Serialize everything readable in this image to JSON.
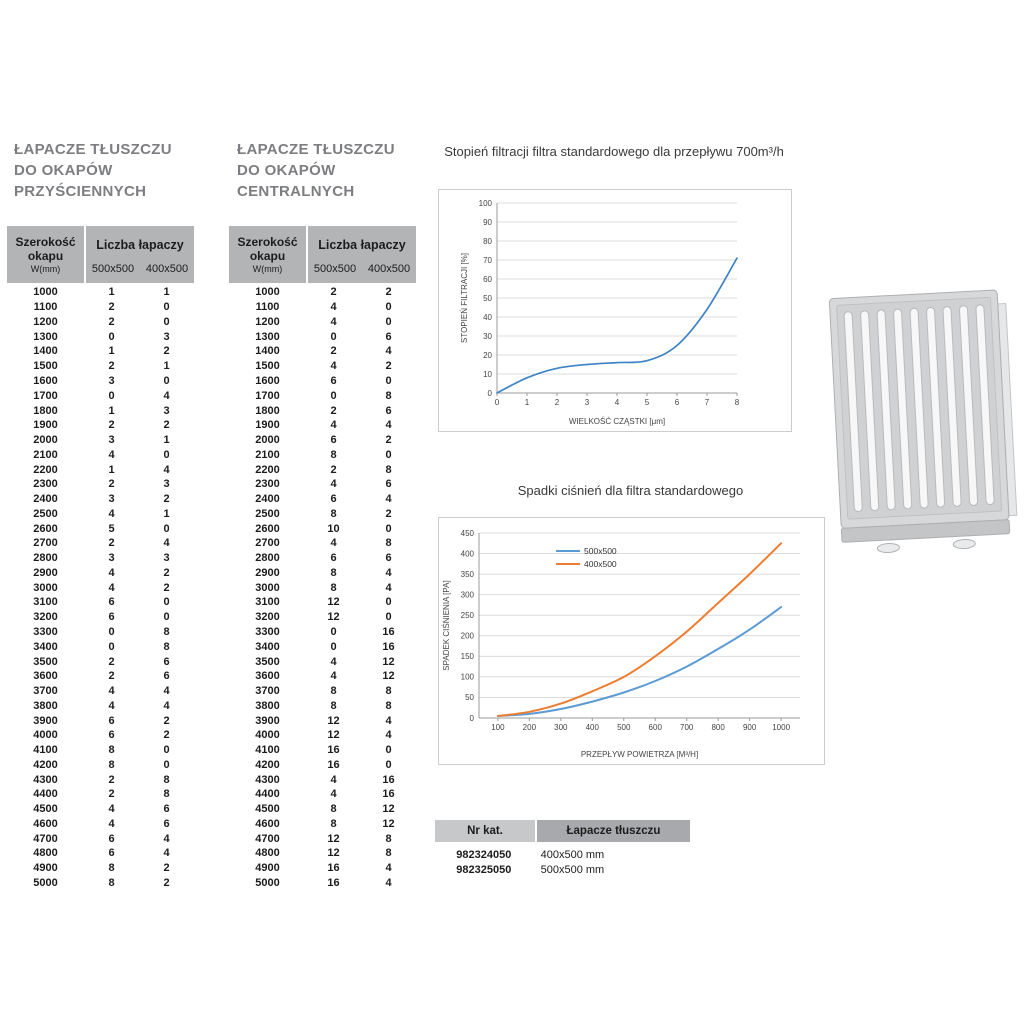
{
  "colors": {
    "table_header_bg": "#b2b4b6",
    "catalog_header_light": "#c7c8ca",
    "catalog_header_dark": "#a7a9ac",
    "chart_blue": "#5b9bd5",
    "chart_orange": "#ed7d31",
    "filtration_line": "#3f84c6"
  },
  "tables": {
    "wall": {
      "title": [
        "ŁAPACZE TŁUSZCZU",
        "DO OKAPÓW",
        "PRZYŚCIENNYCH"
      ],
      "header": {
        "w1": "Szerokość",
        "w2": "okapu",
        "w3": "W(mm)",
        "group": "Liczba łapaczy",
        "sub": [
          "500x500",
          "400x500"
        ]
      },
      "rows": [
        [
          1000,
          1,
          1
        ],
        [
          1100,
          2,
          0
        ],
        [
          1200,
          2,
          0
        ],
        [
          1300,
          0,
          3
        ],
        [
          1400,
          1,
          2
        ],
        [
          1500,
          2,
          1
        ],
        [
          1600,
          3,
          0
        ],
        [
          1700,
          0,
          4
        ],
        [
          1800,
          1,
          3
        ],
        [
          1900,
          2,
          2
        ],
        [
          2000,
          3,
          1
        ],
        [
          2100,
          4,
          0
        ],
        [
          2200,
          1,
          4
        ],
        [
          2300,
          2,
          3
        ],
        [
          2400,
          3,
          2
        ],
        [
          2500,
          4,
          1
        ],
        [
          2600,
          5,
          0
        ],
        [
          2700,
          2,
          4
        ],
        [
          2800,
          3,
          3
        ],
        [
          2900,
          4,
          2
        ],
        [
          3000,
          4,
          2
        ],
        [
          3100,
          6,
          0
        ],
        [
          3200,
          6,
          0
        ],
        [
          3300,
          0,
          8
        ],
        [
          3400,
          0,
          8
        ],
        [
          3500,
          2,
          6
        ],
        [
          3600,
          2,
          6
        ],
        [
          3700,
          4,
          4
        ],
        [
          3800,
          4,
          4
        ],
        [
          3900,
          6,
          2
        ],
        [
          4000,
          6,
          2
        ],
        [
          4100,
          8,
          0
        ],
        [
          4200,
          8,
          0
        ],
        [
          4300,
          2,
          8
        ],
        [
          4400,
          2,
          8
        ],
        [
          4500,
          4,
          6
        ],
        [
          4600,
          4,
          6
        ],
        [
          4700,
          6,
          4
        ],
        [
          4800,
          6,
          4
        ],
        [
          4900,
          8,
          2
        ],
        [
          5000,
          8,
          2
        ]
      ]
    },
    "central": {
      "title": [
        "ŁAPACZE TŁUSZCZU",
        "DO OKAPÓW",
        "CENTRALNYCH"
      ],
      "header": {
        "w1": "Szerokość",
        "w2": "okapu",
        "w3": "W(mm)",
        "group": "Liczba łapaczy",
        "sub": [
          "500x500",
          "400x500"
        ]
      },
      "rows": [
        [
          1000,
          2,
          2
        ],
        [
          1100,
          4,
          0
        ],
        [
          1200,
          4,
          0
        ],
        [
          1300,
          0,
          6
        ],
        [
          1400,
          2,
          4
        ],
        [
          1500,
          4,
          2
        ],
        [
          1600,
          6,
          0
        ],
        [
          1700,
          0,
          8
        ],
        [
          1800,
          2,
          6
        ],
        [
          1900,
          4,
          4
        ],
        [
          2000,
          6,
          2
        ],
        [
          2100,
          8,
          0
        ],
        [
          2200,
          2,
          8
        ],
        [
          2300,
          4,
          6
        ],
        [
          2400,
          6,
          4
        ],
        [
          2500,
          8,
          2
        ],
        [
          2600,
          10,
          0
        ],
        [
          2700,
          4,
          8
        ],
        [
          2800,
          6,
          6
        ],
        [
          2900,
          8,
          4
        ],
        [
          3000,
          8,
          4
        ],
        [
          3100,
          12,
          0
        ],
        [
          3200,
          12,
          0
        ],
        [
          3300,
          0,
          16
        ],
        [
          3400,
          0,
          16
        ],
        [
          3500,
          4,
          12
        ],
        [
          3600,
          4,
          12
        ],
        [
          3700,
          8,
          8
        ],
        [
          3800,
          8,
          8
        ],
        [
          3900,
          12,
          4
        ],
        [
          4000,
          12,
          4
        ],
        [
          4100,
          16,
          0
        ],
        [
          4200,
          16,
          0
        ],
        [
          4300,
          4,
          16
        ],
        [
          4400,
          4,
          16
        ],
        [
          4500,
          8,
          12
        ],
        [
          4600,
          8,
          12
        ],
        [
          4700,
          12,
          8
        ],
        [
          4800,
          12,
          8
        ],
        [
          4900,
          16,
          4
        ],
        [
          5000,
          16,
          4
        ]
      ]
    }
  },
  "chart_data": [
    {
      "type": "line",
      "title": "Stopień filtracji filtra standardowego dla przepływu 700m³/h",
      "xlabel": "WIELKOŚĆ CZĄSTKI [μm]",
      "ylabel": "STOPIEŃ FILTRACJI [%]",
      "x": [
        0,
        1,
        2,
        3,
        4,
        5,
        6,
        7,
        8
      ],
      "xticks": [
        0,
        1,
        2,
        3,
        4,
        5,
        6,
        7,
        8
      ],
      "xlim": [
        0,
        8
      ],
      "ylim": [
        0,
        100
      ],
      "ytick": 10,
      "grid": true,
      "legend": false,
      "series": [
        {
          "name": "stopień filtracji",
          "color": "#3f84c6",
          "width": 1.7,
          "values": [
            0,
            8,
            13,
            15,
            16,
            17,
            25,
            44,
            71
          ]
        }
      ]
    },
    {
      "type": "line",
      "title": "Spadki ciśnień dla filtra standardowego",
      "xlabel": "PRZEPŁYW POWIETRZA [M³/H]",
      "ylabel": "SPADEK CIŚNIENIA [PA]",
      "x": [
        100,
        200,
        300,
        400,
        500,
        600,
        700,
        800,
        900,
        1000
      ],
      "xticks": [
        100,
        200,
        300,
        400,
        500,
        600,
        700,
        800,
        900,
        1000
      ],
      "xlim": [
        40,
        1060
      ],
      "ylim": [
        0,
        450
      ],
      "ytick": 50,
      "grid": true,
      "legend": true,
      "series": [
        {
          "name": "500x500",
          "color": "#5b9bd5",
          "width": 2,
          "values": [
            5,
            10,
            22,
            40,
            62,
            90,
            125,
            168,
            215,
            270
          ]
        },
        {
          "name": "400x500",
          "color": "#ed7d31",
          "width": 2,
          "values": [
            5,
            15,
            35,
            65,
            100,
            150,
            210,
            280,
            350,
            425
          ]
        }
      ]
    }
  ],
  "catalog": {
    "header": [
      "Nr kat.",
      "Łapacze tłuszczu"
    ],
    "rows": [
      [
        "982324050",
        "400x500 mm"
      ],
      [
        "982325050",
        "500x500 mm"
      ]
    ]
  }
}
